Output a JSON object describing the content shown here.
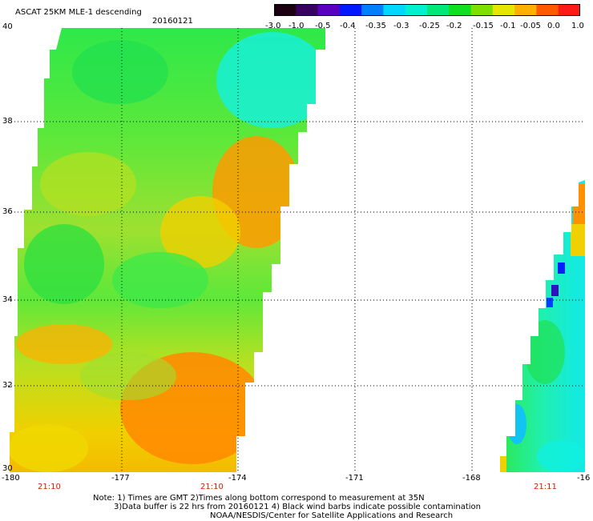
{
  "header": {
    "title": "ASCAT 25KM MLE-1 descending",
    "date": "20160121"
  },
  "colorbar": {
    "labels": [
      "-3.0",
      "-1.0",
      "-0.5",
      "-0.4",
      "-0.35",
      "-0.3",
      "-0.25",
      "-0.2",
      "-0.15",
      "-0.1",
      "-0.05",
      "0.0",
      "1.0"
    ],
    "colors": [
      "#1a0010",
      "#3a0060",
      "#5a00c0",
      "#0018ff",
      "#0080ff",
      "#00d8ff",
      "#00f0d0",
      "#00e878",
      "#10e020",
      "#7ee000",
      "#e6e600",
      "#ffb000",
      "#ff5a00",
      "#ff1a1a"
    ]
  },
  "axes": {
    "lon_labels": [
      "-180",
      "-177",
      "-174",
      "-171",
      "-168",
      "-16"
    ],
    "lat_labels": [
      "40",
      "38",
      "36",
      "34",
      "32",
      "30"
    ],
    "times": [
      "21:10",
      "21:10",
      "21:11"
    ]
  },
  "notes": {
    "line1": "Note: 1) Times are GMT 2)Times along bottom correspond to measurement at 35N",
    "line2": "3)Data buffer is 22 hrs from 20160121 4) Black wind barbs indicate possible contamination",
    "line3": "NOAA/NESDIS/Center for Satellite Applications and Research"
  }
}
